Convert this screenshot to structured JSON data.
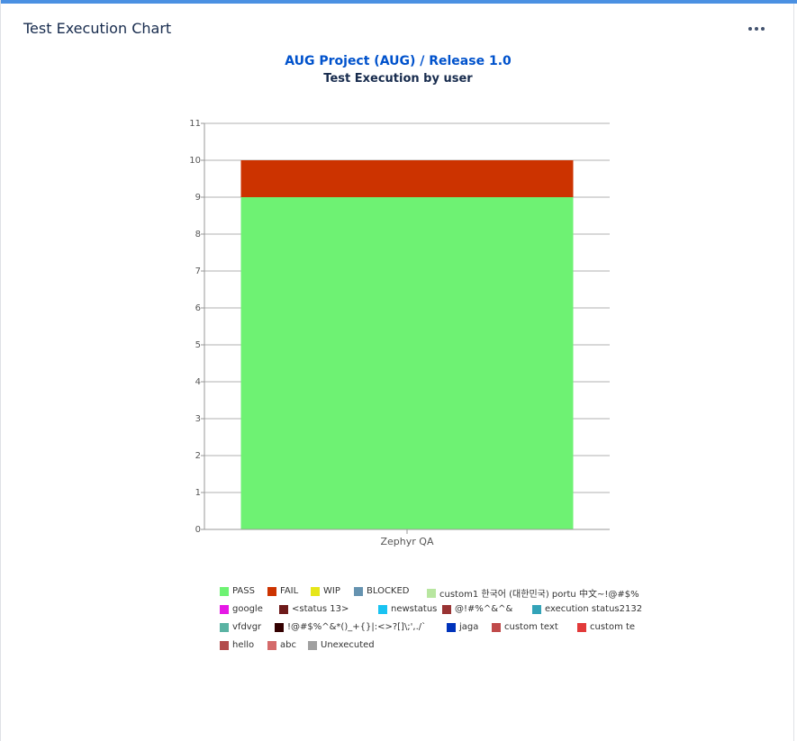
{
  "gadget": {
    "title": "Test Execution Chart",
    "more_icon": "more-horizontal-icon"
  },
  "heading": {
    "project": "AUG Project (AUG)",
    "separator": " / ",
    "release": "Release 1.0",
    "subtitle": "Test Execution by user"
  },
  "chart_data": {
    "type": "bar",
    "stacked": true,
    "categories": [
      "Zephyr QA"
    ],
    "series": [
      {
        "name": "PASS",
        "color": "#6ef273",
        "values": [
          9
        ]
      },
      {
        "name": "FAIL",
        "color": "#cc3300",
        "values": [
          1
        ]
      }
    ],
    "ylim": [
      0,
      11
    ],
    "yticks": [
      "0",
      "1",
      "2",
      "3",
      "4",
      "5",
      "6",
      "7",
      "8",
      "9",
      "10",
      "11"
    ],
    "grid": true,
    "legend_position": "bottom"
  },
  "legend": [
    {
      "label": "PASS",
      "color": "#6ef273"
    },
    {
      "label": "FAIL",
      "color": "#cc3300"
    },
    {
      "label": "WIP",
      "color": "#e6e619"
    },
    {
      "label": "BLOCKED",
      "color": "#6693b0"
    },
    {
      "label": "custom1 한국어 (대한민국) portu 中文~!@#$%",
      "color": "#b8e6a0"
    },
    {
      "label": "google",
      "color": "#e619e6"
    },
    {
      "label": "<status 13>",
      "color": "#6e1a1a"
    },
    {
      "label": "newstatus",
      "color": "#19c3f2"
    },
    {
      "label": "@!#%^&^&",
      "color": "#993333"
    },
    {
      "label": "execution status2132",
      "color": "#33a3b8"
    },
    {
      "label": "vfdvgr",
      "color": "#5ab3a3"
    },
    {
      "label": "!@#$%^&*()_+{}|:<>?[]\\;',./`",
      "color": "#330000"
    },
    {
      "label": "jaga",
      "color": "#0033bb"
    },
    {
      "label": "custom text",
      "color": "#c04a4a"
    },
    {
      "label": "custom te",
      "color": "#e23a3a"
    },
    {
      "label": "hello",
      "color": "#b34d4d"
    },
    {
      "label": "abc",
      "color": "#d46a6a"
    },
    {
      "label": "Unexecuted",
      "color": "#a0a0a0"
    }
  ]
}
